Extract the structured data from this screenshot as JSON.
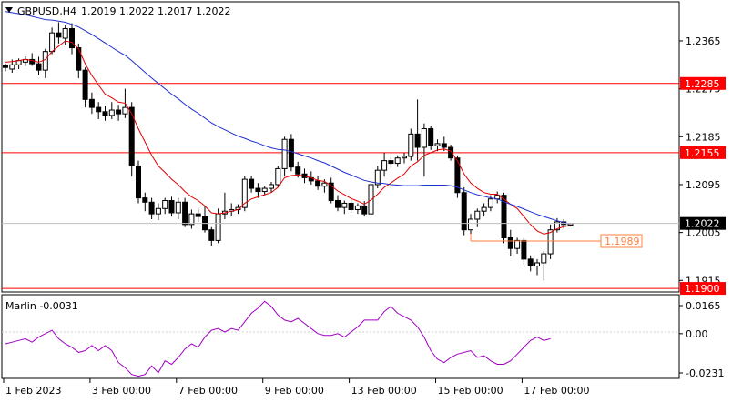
{
  "header": {
    "symbol_label": "GBPUSD,H4",
    "ohlc_label": "1.2019 1.2022 1.2017 1.2022"
  },
  "indicator": {
    "label": "Marlin -0.0031",
    "ticks": [
      "0.0165",
      "0.00",
      "-0.0231"
    ],
    "values": [
      -0.006,
      -0.005,
      -0.004,
      -0.003,
      -0.005,
      -0.002,
      0.0,
      0.002,
      -0.003,
      -0.006,
      -0.008,
      -0.011,
      -0.01,
      -0.007,
      -0.01,
      -0.007,
      -0.01,
      -0.017,
      -0.02,
      -0.024,
      -0.025,
      -0.024,
      -0.019,
      -0.023,
      -0.016,
      -0.018,
      -0.014,
      -0.009,
      -0.006,
      -0.008,
      -0.002,
      0.002,
      0.003,
      0.001,
      0.003,
      0.002,
      0.007,
      0.012,
      0.015,
      0.019,
      0.016,
      0.011,
      0.008,
      0.007,
      0.009,
      0.006,
      0.003,
      0.0,
      -0.001,
      -0.001,
      0.0,
      -0.002,
      0.001,
      0.004,
      0.008,
      0.008,
      0.008,
      0.013,
      0.016,
      0.012,
      0.01,
      0.008,
      0.004,
      -0.002,
      -0.01,
      -0.015,
      -0.017,
      -0.014,
      -0.012,
      -0.011,
      -0.01,
      -0.014,
      -0.013,
      -0.016,
      -0.018,
      -0.018,
      -0.016,
      -0.012,
      -0.008,
      -0.004,
      -0.002,
      -0.004,
      -0.003
    ]
  },
  "price_axis": {
    "ticks": [
      "1.2365",
      "1.2275",
      "1.2185",
      "1.2095",
      "1.2005",
      "1.1915"
    ],
    "current_price_label": "1.2022",
    "levels": [
      {
        "value": 1.2285,
        "label": "1.2285",
        "color": "#ff0000"
      },
      {
        "value": 1.2155,
        "label": "1.2155",
        "color": "#ff0000"
      },
      {
        "value": 1.19,
        "label": "1.1900",
        "color": "#ff0000"
      }
    ],
    "annotation": {
      "value": 1.1989,
      "label": "1.1989",
      "color": "#ff8040"
    }
  },
  "time_axis": {
    "ticks": [
      "1 Feb 2023",
      "3 Feb 00:00",
      "7 Feb 00:00",
      "9 Feb 00:00",
      "13 Feb 00:00",
      "15 Feb 00:00",
      "17 Feb 00:00"
    ]
  },
  "colors": {
    "ma_fast": "#e00000",
    "ma_slow": "#1f2fd0",
    "indicator_line": "#a000c0",
    "level": "#ff0000",
    "annotation": "#ff8040",
    "grid_bg": "#ffffff"
  },
  "chart_data": {
    "type": "candlestick",
    "symbol": "GBPUSD",
    "timeframe": "H4",
    "ylim": [
      1.1895,
      1.2435
    ],
    "candles": [
      [
        1.2318,
        1.2322,
        1.2308,
        1.2315
      ],
      [
        1.2312,
        1.233,
        1.2305,
        1.232
      ],
      [
        1.232,
        1.2332,
        1.2312,
        1.2328
      ],
      [
        1.2325,
        1.2336,
        1.2318,
        1.233
      ],
      [
        1.233,
        1.2342,
        1.2318,
        1.2322
      ],
      [
        1.2322,
        1.2335,
        1.23,
        1.231
      ],
      [
        1.231,
        1.235,
        1.2295,
        1.2345
      ],
      [
        1.2345,
        1.239,
        1.234,
        1.238
      ],
      [
        1.238,
        1.24,
        1.236,
        1.2372
      ],
      [
        1.237,
        1.2395,
        1.2358,
        1.2388
      ],
      [
        1.2388,
        1.2398,
        1.234,
        1.2352
      ],
      [
        1.2352,
        1.236,
        1.2295,
        1.231
      ],
      [
        1.231,
        1.2315,
        1.224,
        1.2255
      ],
      [
        1.2255,
        1.2268,
        1.2228,
        1.224
      ],
      [
        1.224,
        1.225,
        1.2218,
        1.2232
      ],
      [
        1.2232,
        1.2242,
        1.2215,
        1.2225
      ],
      [
        1.2225,
        1.225,
        1.2218,
        1.2235
      ],
      [
        1.2235,
        1.2245,
        1.2215,
        1.2228
      ],
      [
        1.2228,
        1.2275,
        1.222,
        1.224
      ],
      [
        1.224,
        1.225,
        1.211,
        1.213
      ],
      [
        1.213,
        1.214,
        1.206,
        1.207
      ],
      [
        1.207,
        1.208,
        1.2045,
        1.2062
      ],
      [
        1.2062,
        1.207,
        1.203,
        1.204
      ],
      [
        1.204,
        1.206,
        1.2028,
        1.205
      ],
      [
        1.205,
        1.207,
        1.204,
        1.2065
      ],
      [
        1.2065,
        1.2072,
        1.2035,
        1.2042
      ],
      [
        1.2042,
        1.207,
        1.203,
        1.2062
      ],
      [
        1.2062,
        1.207,
        1.2015,
        1.202
      ],
      [
        1.202,
        1.2048,
        1.2012,
        1.204
      ],
      [
        1.204,
        1.205,
        1.2025,
        1.2035
      ],
      [
        1.2035,
        1.2055,
        1.2005,
        1.201
      ],
      [
        1.201,
        1.2015,
        1.198,
        1.199
      ],
      [
        1.199,
        1.205,
        1.1985,
        1.204
      ],
      [
        1.204,
        1.208,
        1.203,
        1.2045
      ],
      [
        1.2045,
        1.206,
        1.2035,
        1.2048
      ],
      [
        1.2048,
        1.2058,
        1.204,
        1.2052
      ],
      [
        1.2052,
        1.2112,
        1.2045,
        1.2105
      ],
      [
        1.2105,
        1.2112,
        1.208,
        1.2088
      ],
      [
        1.2088,
        1.2098,
        1.207,
        1.2082
      ],
      [
        1.2082,
        1.2092,
        1.2075,
        1.2088
      ],
      [
        1.2088,
        1.21,
        1.208,
        1.2095
      ],
      [
        1.2095,
        1.213,
        1.209,
        1.2125
      ],
      [
        1.2125,
        1.2185,
        1.211,
        1.218
      ],
      [
        1.218,
        1.219,
        1.212,
        1.2128
      ],
      [
        1.2128,
        1.2138,
        1.2108,
        1.2115
      ],
      [
        1.2115,
        1.2125,
        1.2098,
        1.2108
      ],
      [
        1.2108,
        1.212,
        1.2095,
        1.2102
      ],
      [
        1.2102,
        1.2112,
        1.2085,
        1.2092
      ],
      [
        1.2092,
        1.2105,
        1.208,
        1.2098
      ],
      [
        1.2098,
        1.2108,
        1.206,
        1.2065
      ],
      [
        1.2065,
        1.2075,
        1.2045,
        1.2052
      ],
      [
        1.2052,
        1.2065,
        1.204,
        1.206
      ],
      [
        1.206,
        1.2068,
        1.2042,
        1.2048
      ],
      [
        1.2048,
        1.206,
        1.204,
        1.2055
      ],
      [
        1.2055,
        1.2064,
        1.2035,
        1.204
      ],
      [
        1.204,
        1.21,
        1.2035,
        1.2095
      ],
      [
        1.2095,
        1.213,
        1.2088,
        1.2122
      ],
      [
        1.2122,
        1.2155,
        1.211,
        1.214
      ],
      [
        1.214,
        1.215,
        1.2125,
        1.2135
      ],
      [
        1.2135,
        1.215,
        1.2128,
        1.2145
      ],
      [
        1.2145,
        1.2155,
        1.2135,
        1.2148
      ],
      [
        1.2148,
        1.22,
        1.214,
        1.219
      ],
      [
        1.219,
        1.2255,
        1.214,
        1.2165
      ],
      [
        1.2165,
        1.221,
        1.211,
        1.22
      ],
      [
        1.22,
        1.2205,
        1.216,
        1.2168
      ],
      [
        1.2168,
        1.218,
        1.2158,
        1.2172
      ],
      [
        1.2172,
        1.2185,
        1.2158,
        1.2165
      ],
      [
        1.2165,
        1.217,
        1.214,
        1.2145
      ],
      [
        1.2145,
        1.215,
        1.207,
        1.208
      ],
      [
        1.208,
        1.209,
        1.2,
        1.201
      ],
      [
        1.201,
        1.204,
        1.199,
        1.203
      ],
      [
        1.203,
        1.205,
        1.2015,
        1.2045
      ],
      [
        1.2045,
        1.206,
        1.2035,
        1.2052
      ],
      [
        1.2052,
        1.2075,
        1.2045,
        1.2068
      ],
      [
        1.2068,
        1.2082,
        1.206,
        1.2075
      ],
      [
        1.2075,
        1.208,
        1.1985,
        1.1995
      ],
      [
        1.1995,
        1.201,
        1.196,
        1.1975
      ],
      [
        1.1975,
        1.1995,
        1.1965,
        1.199
      ],
      [
        1.199,
        1.1995,
        1.1945,
        1.1955
      ],
      [
        1.1955,
        1.1962,
        1.1932,
        1.1942
      ],
      [
        1.1942,
        1.1955,
        1.1925,
        1.1948
      ],
      [
        1.1948,
        1.197,
        1.1915,
        1.1965
      ],
      [
        1.1965,
        1.202,
        1.1955,
        1.201
      ],
      [
        1.201,
        1.2032,
        1.2005,
        1.2025
      ],
      [
        1.2025,
        1.203,
        1.2012,
        1.202
      ],
      [
        1.2019,
        1.2022,
        1.2017,
        1.2022
      ]
    ],
    "ma_fast": [
      1.2325,
      1.2326,
      1.2328,
      1.233,
      1.2328,
      1.2325,
      1.233,
      1.2345,
      1.2355,
      1.2365,
      1.2362,
      1.235,
      1.2322,
      1.23,
      1.2282,
      1.2265,
      1.2258,
      1.225,
      1.2248,
      1.2228,
      1.22,
      1.2175,
      1.215,
      1.213,
      1.2118,
      1.2105,
      1.2095,
      1.2082,
      1.2072,
      1.2065,
      1.2055,
      1.2042,
      1.204,
      1.2042,
      1.2045,
      1.2048,
      1.206,
      1.2068,
      1.2072,
      1.2076,
      1.208,
      1.209,
      1.2108,
      1.2112,
      1.2113,
      1.2111,
      1.2108,
      1.2103,
      1.2101,
      1.2093,
      1.2083,
      1.2076,
      1.2069,
      1.2064,
      1.2058,
      1.2066,
      1.2077,
      1.209,
      1.2098,
      1.2107,
      1.2115,
      1.213,
      1.2138,
      1.215,
      1.2155,
      1.216,
      1.2162,
      1.2158,
      1.214,
      1.2115,
      1.2098,
      1.2088,
      1.208,
      1.2077,
      1.2077,
      1.2068,
      1.2058,
      1.205,
      1.2035,
      1.202,
      1.2008,
      1.2002,
      1.2005,
      1.2012,
      1.2016,
      1.2018
    ],
    "ma_slow": [
      1.242,
      1.2418,
      1.2416,
      1.2414,
      1.2411,
      1.2408,
      1.2405,
      1.2404,
      1.2402,
      1.24,
      1.2396,
      1.2391,
      1.2384,
      1.2377,
      1.2369,
      1.2361,
      1.2353,
      1.2345,
      1.2338,
      1.2328,
      1.2317,
      1.2306,
      1.2295,
      1.2285,
      1.2275,
      1.2265,
      1.2256,
      1.2246,
      1.2237,
      1.2229,
      1.222,
      1.2211,
      1.2204,
      1.2198,
      1.2192,
      1.2186,
      1.2182,
      1.2177,
      1.2173,
      1.2168,
      1.2164,
      1.2161,
      1.216,
      1.2157,
      1.2153,
      1.2149,
      1.2145,
      1.214,
      1.2136,
      1.213,
      1.2124,
      1.2118,
      1.2113,
      1.2108,
      1.2103,
      1.21,
      1.2098,
      1.2097,
      1.2095,
      1.2094,
      1.2093,
      1.2093,
      1.2093,
      1.2094,
      1.2094,
      1.2094,
      1.2094,
      1.2093,
      1.209,
      1.2085,
      1.208,
      1.2076,
      1.2073,
      1.207,
      1.2068,
      1.2063,
      1.2058,
      1.2054,
      1.2049,
      1.2044,
      1.2039,
      1.2035,
      1.2031,
      1.2027,
      1.2024,
      1.2021
    ]
  }
}
